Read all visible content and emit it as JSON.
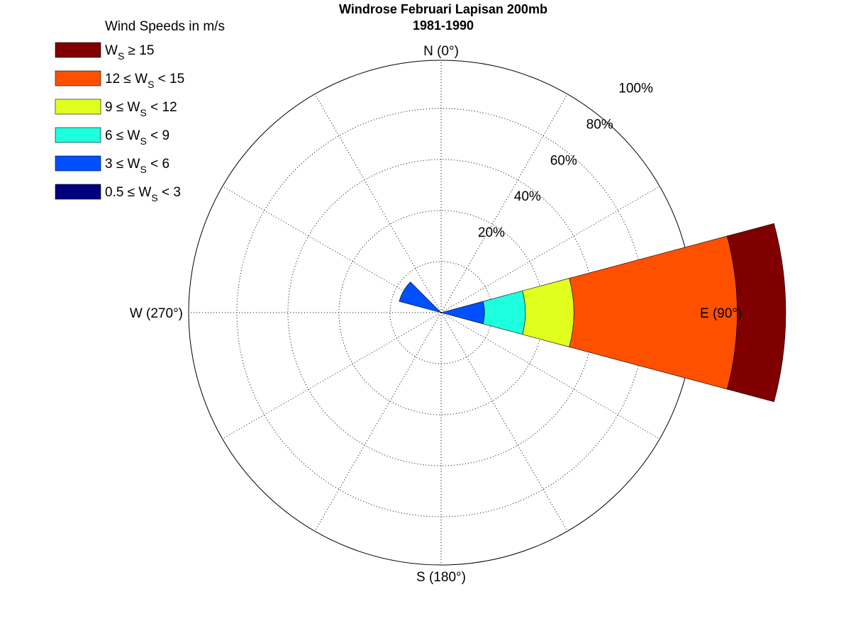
{
  "chart_data": {
    "type": "windrose",
    "title": "Windrose Februari Lapisan 200mb",
    "subtitle": "1981-1990",
    "legend_title": "Wind Speeds in m/s",
    "legend_placement": "top-left",
    "radial_ticks": [
      "20%",
      "40%",
      "60%",
      "80%",
      "100%"
    ],
    "radial_max": 100,
    "grid": true,
    "direction_labels": [
      {
        "label": "N (0°)",
        "angle": 0
      },
      {
        "label": "E (90°)",
        "angle": 90
      },
      {
        "label": "S (180°)",
        "angle": 180
      },
      {
        "label": "W (270°)",
        "angle": 270
      }
    ],
    "bins": [
      {
        "range": "0.5 ≤ W_S < 3",
        "color": "#000080"
      },
      {
        "range": "3 ≤ W_S < 6",
        "color": "#0050ff"
      },
      {
        "range": "6 ≤ W_S < 9",
        "color": "#1effe0"
      },
      {
        "range": "9 ≤ W_S < 12",
        "color": "#e0ff1e"
      },
      {
        "range": "12 ≤ W_S < 15",
        "color": "#ff5000"
      },
      {
        "range": "W_S ≥ 15",
        "color": "#800000"
      }
    ],
    "sector_width_deg": 30,
    "sectors": [
      {
        "direction": 0,
        "values": [
          0,
          0,
          0,
          0,
          0,
          0
        ]
      },
      {
        "direction": 30,
        "values": [
          0,
          0,
          0,
          0,
          0,
          0
        ]
      },
      {
        "direction": 60,
        "values": [
          0,
          0,
          0,
          0,
          0,
          0
        ]
      },
      {
        "direction": 90,
        "values": [
          0,
          17,
          16,
          19,
          64,
          19
        ]
      },
      {
        "direction": 120,
        "values": [
          0,
          0,
          0,
          0,
          0,
          0
        ]
      },
      {
        "direction": 150,
        "values": [
          0,
          0,
          0,
          0,
          0,
          0
        ]
      },
      {
        "direction": 180,
        "values": [
          0,
          0,
          0,
          0,
          0,
          0
        ]
      },
      {
        "direction": 210,
        "values": [
          0,
          0,
          0,
          0,
          0,
          0
        ]
      },
      {
        "direction": 240,
        "values": [
          0,
          0,
          0,
          0,
          0,
          0
        ]
      },
      {
        "direction": 270,
        "values": [
          0,
          0,
          0,
          0,
          0,
          0
        ]
      },
      {
        "direction": 300,
        "values": [
          0,
          17,
          0,
          0,
          0,
          0
        ]
      },
      {
        "direction": 330,
        "values": [
          0,
          0,
          0,
          0,
          0,
          0
        ]
      }
    ]
  }
}
